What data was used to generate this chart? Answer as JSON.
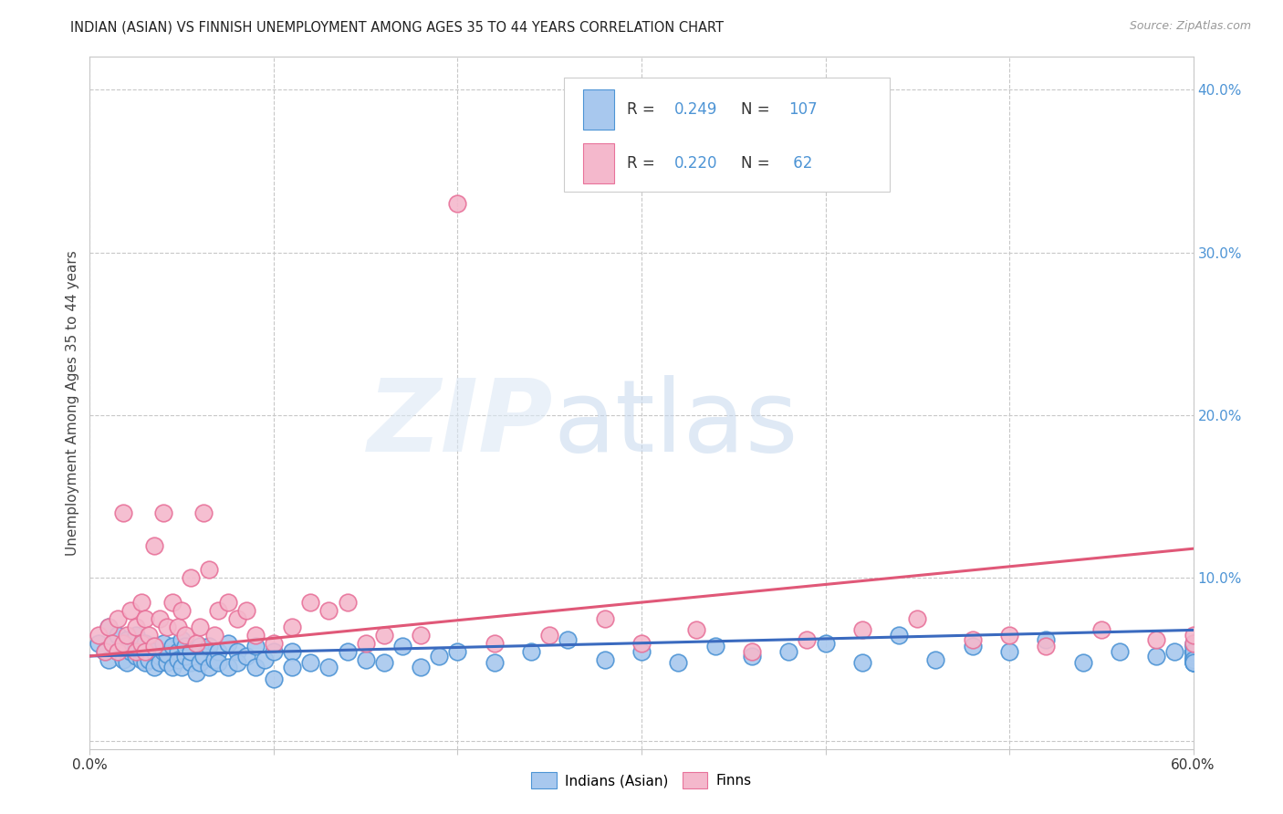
{
  "title": "INDIAN (ASIAN) VS FINNISH UNEMPLOYMENT AMONG AGES 35 TO 44 YEARS CORRELATION CHART",
  "source": "Source: ZipAtlas.com",
  "ylabel": "Unemployment Among Ages 35 to 44 years",
  "xlim": [
    0.0,
    0.6
  ],
  "ylim": [
    -0.005,
    0.42
  ],
  "xtick_positions": [
    0.0,
    0.1,
    0.2,
    0.3,
    0.4,
    0.5,
    0.6
  ],
  "xticklabels": [
    "0.0%",
    "",
    "",
    "",
    "",
    "",
    "60.0%"
  ],
  "yticks_right": [
    0.1,
    0.2,
    0.3,
    0.4
  ],
  "yticklabels_right": [
    "10.0%",
    "20.0%",
    "30.0%",
    "40.0%"
  ],
  "grid_color": "#c8c8c8",
  "bg_color": "#ffffff",
  "blue_color": "#4d94d5",
  "pink_color": "#e8729a",
  "scatter_blue_facecolor": "#a8c8ee",
  "scatter_pink_facecolor": "#f4b8cc",
  "trendline_blue_color": "#3a6abf",
  "trendline_pink_color": "#e05878",
  "legend_text_color": "#4d94d5",
  "legend_label_color": "#333333",
  "indian_x": [
    0.005,
    0.008,
    0.01,
    0.01,
    0.012,
    0.015,
    0.015,
    0.018,
    0.018,
    0.02,
    0.02,
    0.022,
    0.022,
    0.025,
    0.025,
    0.025,
    0.028,
    0.028,
    0.03,
    0.03,
    0.032,
    0.032,
    0.035,
    0.035,
    0.035,
    0.038,
    0.038,
    0.04,
    0.04,
    0.042,
    0.042,
    0.045,
    0.045,
    0.048,
    0.048,
    0.05,
    0.05,
    0.052,
    0.052,
    0.055,
    0.055,
    0.058,
    0.06,
    0.06,
    0.062,
    0.065,
    0.065,
    0.068,
    0.07,
    0.07,
    0.075,
    0.075,
    0.08,
    0.08,
    0.085,
    0.09,
    0.09,
    0.095,
    0.1,
    0.1,
    0.11,
    0.11,
    0.12,
    0.13,
    0.14,
    0.15,
    0.16,
    0.17,
    0.18,
    0.19,
    0.2,
    0.22,
    0.24,
    0.26,
    0.28,
    0.3,
    0.32,
    0.34,
    0.36,
    0.38,
    0.4,
    0.42,
    0.44,
    0.46,
    0.48,
    0.5,
    0.52,
    0.54,
    0.56,
    0.58,
    0.59,
    0.6,
    0.6,
    0.6,
    0.6,
    0.6,
    0.6,
    0.6,
    0.6,
    0.6,
    0.6,
    0.6,
    0.6,
    0.6,
    0.6,
    0.6,
    0.6
  ],
  "indian_y": [
    0.06,
    0.055,
    0.07,
    0.05,
    0.06,
    0.065,
    0.055,
    0.058,
    0.05,
    0.062,
    0.048,
    0.055,
    0.06,
    0.052,
    0.058,
    0.065,
    0.05,
    0.055,
    0.06,
    0.048,
    0.055,
    0.05,
    0.058,
    0.045,
    0.055,
    0.052,
    0.048,
    0.055,
    0.06,
    0.048,
    0.053,
    0.058,
    0.045,
    0.055,
    0.05,
    0.062,
    0.045,
    0.052,
    0.058,
    0.048,
    0.055,
    0.042,
    0.058,
    0.048,
    0.052,
    0.045,
    0.058,
    0.05,
    0.055,
    0.048,
    0.06,
    0.045,
    0.055,
    0.048,
    0.052,
    0.045,
    0.058,
    0.05,
    0.055,
    0.038,
    0.055,
    0.045,
    0.048,
    0.045,
    0.055,
    0.05,
    0.048,
    0.058,
    0.045,
    0.052,
    0.055,
    0.048,
    0.055,
    0.062,
    0.05,
    0.055,
    0.048,
    0.058,
    0.052,
    0.055,
    0.06,
    0.048,
    0.065,
    0.05,
    0.058,
    0.055,
    0.062,
    0.048,
    0.055,
    0.052,
    0.055,
    0.052,
    0.048,
    0.058,
    0.055,
    0.05,
    0.055,
    0.048,
    0.06,
    0.05,
    0.055,
    0.052,
    0.048,
    0.058,
    0.055,
    0.05,
    0.048
  ],
  "finn_x": [
    0.005,
    0.008,
    0.01,
    0.012,
    0.015,
    0.015,
    0.018,
    0.018,
    0.02,
    0.022,
    0.025,
    0.025,
    0.028,
    0.028,
    0.03,
    0.03,
    0.032,
    0.035,
    0.035,
    0.038,
    0.04,
    0.042,
    0.045,
    0.048,
    0.05,
    0.052,
    0.055,
    0.058,
    0.06,
    0.062,
    0.065,
    0.068,
    0.07,
    0.075,
    0.08,
    0.085,
    0.09,
    0.1,
    0.11,
    0.12,
    0.13,
    0.14,
    0.15,
    0.16,
    0.18,
    0.2,
    0.22,
    0.25,
    0.28,
    0.3,
    0.33,
    0.36,
    0.39,
    0.42,
    0.45,
    0.48,
    0.5,
    0.52,
    0.55,
    0.58,
    0.6,
    0.6
  ],
  "finn_y": [
    0.065,
    0.055,
    0.07,
    0.06,
    0.075,
    0.055,
    0.14,
    0.06,
    0.065,
    0.08,
    0.07,
    0.055,
    0.085,
    0.06,
    0.075,
    0.055,
    0.065,
    0.12,
    0.058,
    0.075,
    0.14,
    0.07,
    0.085,
    0.07,
    0.08,
    0.065,
    0.1,
    0.06,
    0.07,
    0.14,
    0.105,
    0.065,
    0.08,
    0.085,
    0.075,
    0.08,
    0.065,
    0.06,
    0.07,
    0.085,
    0.08,
    0.085,
    0.06,
    0.065,
    0.065,
    0.33,
    0.06,
    0.065,
    0.075,
    0.06,
    0.068,
    0.055,
    0.062,
    0.068,
    0.075,
    0.062,
    0.065,
    0.058,
    0.068,
    0.062,
    0.06,
    0.065
  ],
  "indian_trend_x": [
    0.0,
    0.6
  ],
  "indian_trend_y": [
    0.052,
    0.068
  ],
  "finn_trend_x": [
    0.0,
    0.6
  ],
  "finn_trend_y": [
    0.052,
    0.118
  ]
}
